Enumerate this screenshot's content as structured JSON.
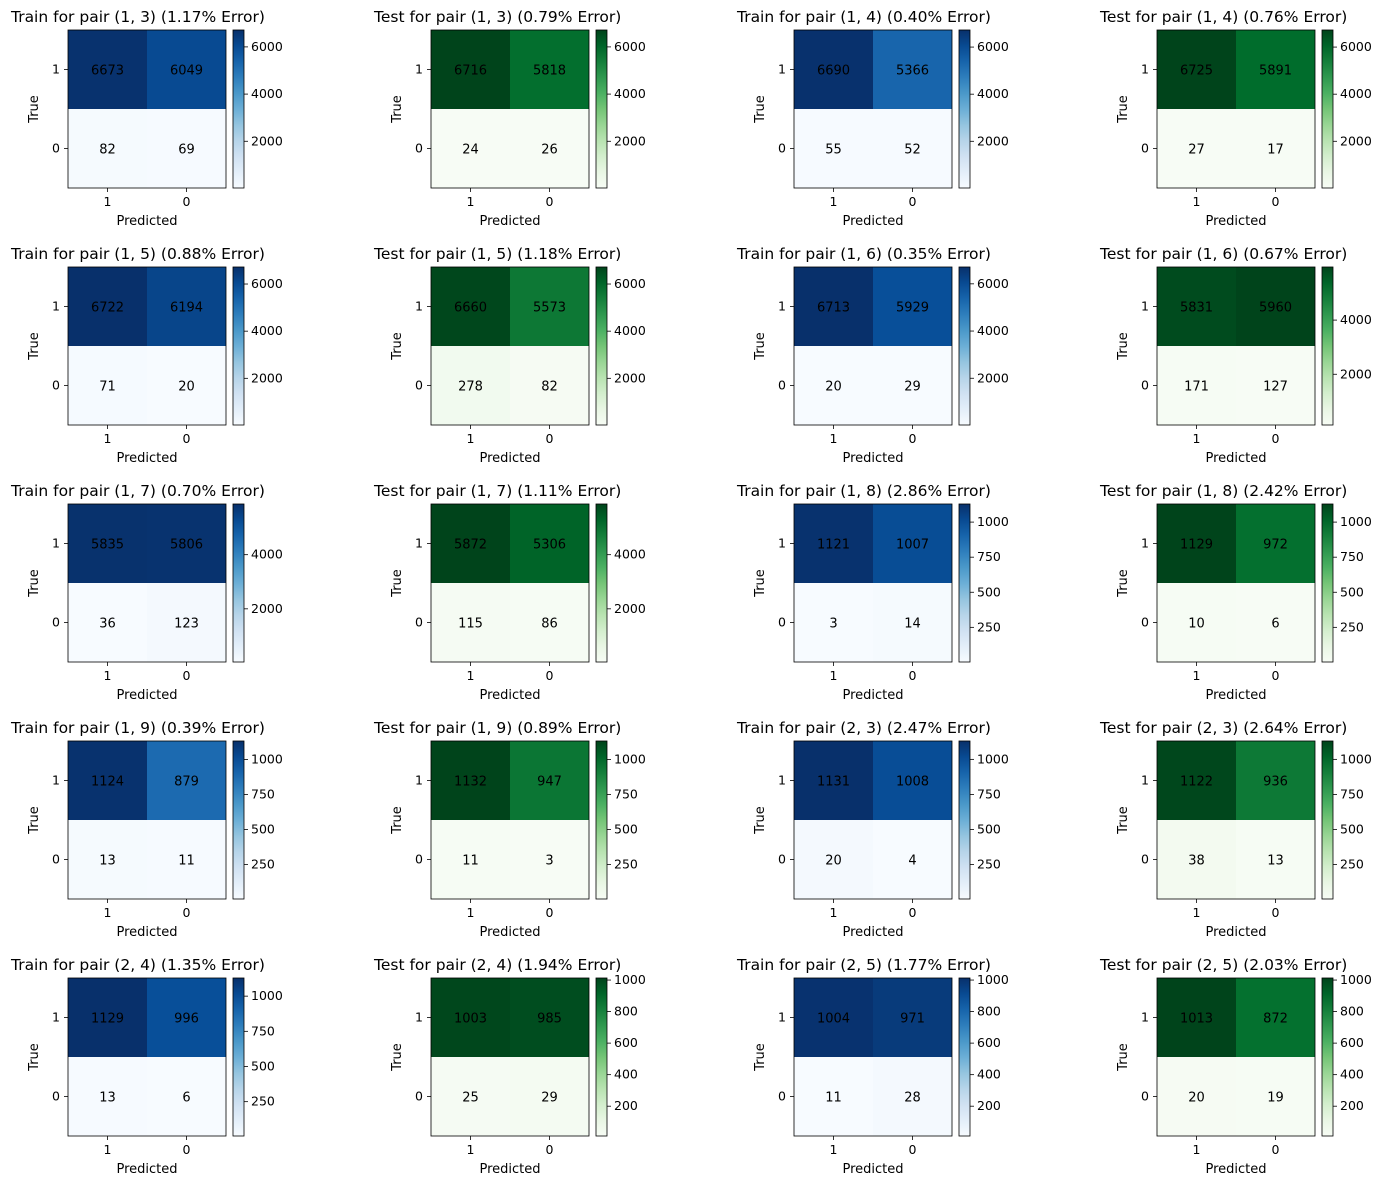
{
  "chart_data": [
    {
      "type": "heatmap",
      "title": "Train for pair (1, 3) (1.17% Error)",
      "xlabel": "Predicted",
      "ylabel": "True",
      "x_categories": [
        "1",
        "0"
      ],
      "y_categories": [
        "1",
        "0"
      ],
      "values": [
        [
          6673,
          6049
        ],
        [
          82,
          69
        ]
      ],
      "colormap": "Blues",
      "colorbar_ticks": [
        2000,
        4000,
        6000
      ],
      "colorbar_range": [
        20,
        6716
      ]
    },
    {
      "type": "heatmap",
      "title": "Test for pair (1, 3) (0.79% Error)",
      "xlabel": "Predicted",
      "ylabel": "True",
      "x_categories": [
        "1",
        "0"
      ],
      "y_categories": [
        "1",
        "0"
      ],
      "values": [
        [
          6716,
          5818
        ],
        [
          24,
          26
        ]
      ],
      "colormap": "Greens",
      "colorbar_ticks": [
        2000,
        4000,
        6000
      ],
      "colorbar_range": [
        20,
        6716
      ]
    },
    {
      "type": "heatmap",
      "title": "Train for pair (1, 4) (0.40% Error)",
      "xlabel": "Predicted",
      "ylabel": "True",
      "x_categories": [
        "1",
        "0"
      ],
      "y_categories": [
        "1",
        "0"
      ],
      "values": [
        [
          6690,
          5366
        ],
        [
          55,
          52
        ]
      ],
      "colormap": "Blues",
      "colorbar_ticks": [
        2000,
        4000,
        6000
      ],
      "colorbar_range": [
        17,
        6725
      ]
    },
    {
      "type": "heatmap",
      "title": "Test for pair (1, 4) (0.76% Error)",
      "xlabel": "Predicted",
      "ylabel": "True",
      "x_categories": [
        "1",
        "0"
      ],
      "y_categories": [
        "1",
        "0"
      ],
      "values": [
        [
          6725,
          5891
        ],
        [
          27,
          17
        ]
      ],
      "colormap": "Greens",
      "colorbar_ticks": [
        2000,
        4000,
        6000
      ],
      "colorbar_range": [
        17,
        6725
      ]
    },
    {
      "type": "heatmap",
      "title": "Train for pair (1, 5) (0.88% Error)",
      "xlabel": "Predicted",
      "ylabel": "True",
      "x_categories": [
        "1",
        "0"
      ],
      "y_categories": [
        "1",
        "0"
      ],
      "values": [
        [
          6722,
          6194
        ],
        [
          71,
          20
        ]
      ],
      "colormap": "Blues",
      "colorbar_ticks": [
        2000,
        4000,
        6000
      ],
      "colorbar_range": [
        20,
        6722
      ]
    },
    {
      "type": "heatmap",
      "title": "Test for pair (1, 5) (1.18% Error)",
      "xlabel": "Predicted",
      "ylabel": "True",
      "x_categories": [
        "1",
        "0"
      ],
      "y_categories": [
        "1",
        "0"
      ],
      "values": [
        [
          6660,
          5573
        ],
        [
          278,
          82
        ]
      ],
      "colormap": "Greens",
      "colorbar_ticks": [
        2000,
        4000,
        6000
      ],
      "colorbar_range": [
        20,
        6722
      ]
    },
    {
      "type": "heatmap",
      "title": "Train for pair (1, 6) (0.35% Error)",
      "xlabel": "Predicted",
      "ylabel": "True",
      "x_categories": [
        "1",
        "0"
      ],
      "y_categories": [
        "1",
        "0"
      ],
      "values": [
        [
          6713,
          5929
        ],
        [
          20,
          29
        ]
      ],
      "colormap": "Blues",
      "colorbar_ticks": [
        2000,
        4000,
        6000
      ],
      "colorbar_range": [
        20,
        6713
      ]
    },
    {
      "type": "heatmap",
      "title": "Test for pair (1, 6) (0.67% Error)",
      "xlabel": "Predicted",
      "ylabel": "True",
      "x_categories": [
        "1",
        "0"
      ],
      "y_categories": [
        "1",
        "0"
      ],
      "values": [
        [
          5831,
          5960
        ],
        [
          171,
          127
        ]
      ],
      "colormap": "Greens",
      "colorbar_ticks": [
        2000,
        4000
      ],
      "colorbar_range": [
        127,
        5960
      ]
    },
    {
      "type": "heatmap",
      "title": "Train for pair (1, 7) (0.70% Error)",
      "xlabel": "Predicted",
      "ylabel": "True",
      "x_categories": [
        "1",
        "0"
      ],
      "y_categories": [
        "1",
        "0"
      ],
      "values": [
        [
          5835,
          5806
        ],
        [
          36,
          123
        ]
      ],
      "colormap": "Blues",
      "colorbar_ticks": [
        2000,
        4000
      ],
      "colorbar_range": [
        36,
        5872
      ]
    },
    {
      "type": "heatmap",
      "title": "Test for pair (1, 7) (1.11% Error)",
      "xlabel": "Predicted",
      "ylabel": "True",
      "x_categories": [
        "1",
        "0"
      ],
      "y_categories": [
        "1",
        "0"
      ],
      "values": [
        [
          5872,
          5306
        ],
        [
          115,
          86
        ]
      ],
      "colormap": "Greens",
      "colorbar_ticks": [
        2000,
        4000
      ],
      "colorbar_range": [
        36,
        5872
      ]
    },
    {
      "type": "heatmap",
      "title": "Train for pair (1, 8) (2.86% Error)",
      "xlabel": "Predicted",
      "ylabel": "True",
      "x_categories": [
        "1",
        "0"
      ],
      "y_categories": [
        "1",
        "0"
      ],
      "values": [
        [
          1121,
          1007
        ],
        [
          3,
          14
        ]
      ],
      "colormap": "Blues",
      "colorbar_ticks": [
        250,
        500,
        750,
        1000
      ],
      "colorbar_range": [
        3,
        1129
      ]
    },
    {
      "type": "heatmap",
      "title": "Test for pair (1, 8) (2.42% Error)",
      "xlabel": "Predicted",
      "ylabel": "True",
      "x_categories": [
        "1",
        "0"
      ],
      "y_categories": [
        "1",
        "0"
      ],
      "values": [
        [
          1129,
          972
        ],
        [
          10,
          6
        ]
      ],
      "colormap": "Greens",
      "colorbar_ticks": [
        250,
        500,
        750,
        1000
      ],
      "colorbar_range": [
        3,
        1129
      ]
    },
    {
      "type": "heatmap",
      "title": "Train for pair (1, 9) (0.39% Error)",
      "xlabel": "Predicted",
      "ylabel": "True",
      "x_categories": [
        "1",
        "0"
      ],
      "y_categories": [
        "1",
        "0"
      ],
      "values": [
        [
          1124,
          879
        ],
        [
          13,
          11
        ]
      ],
      "colormap": "Blues",
      "colorbar_ticks": [
        250,
        500,
        750,
        1000
      ],
      "colorbar_range": [
        3,
        1132
      ]
    },
    {
      "type": "heatmap",
      "title": "Test for pair (1, 9) (0.89% Error)",
      "xlabel": "Predicted",
      "ylabel": "True",
      "x_categories": [
        "1",
        "0"
      ],
      "y_categories": [
        "1",
        "0"
      ],
      "values": [
        [
          1132,
          947
        ],
        [
          11,
          3
        ]
      ],
      "colormap": "Greens",
      "colorbar_ticks": [
        250,
        500,
        750,
        1000
      ],
      "colorbar_range": [
        3,
        1132
      ]
    },
    {
      "type": "heatmap",
      "title": "Train for pair (2, 3) (2.47% Error)",
      "xlabel": "Predicted",
      "ylabel": "True",
      "x_categories": [
        "1",
        "0"
      ],
      "y_categories": [
        "1",
        "0"
      ],
      "values": [
        [
          1131,
          1008
        ],
        [
          20,
          4
        ]
      ],
      "colormap": "Blues",
      "colorbar_ticks": [
        250,
        500,
        750,
        1000
      ],
      "colorbar_range": [
        4,
        1131
      ]
    },
    {
      "type": "heatmap",
      "title": "Test for pair (2, 3) (2.64% Error)",
      "xlabel": "Predicted",
      "ylabel": "True",
      "x_categories": [
        "1",
        "0"
      ],
      "y_categories": [
        "1",
        "0"
      ],
      "values": [
        [
          1122,
          936
        ],
        [
          38,
          13
        ]
      ],
      "colormap": "Greens",
      "colorbar_ticks": [
        250,
        500,
        750,
        1000
      ],
      "colorbar_range": [
        4,
        1131
      ]
    },
    {
      "type": "heatmap",
      "title": "Train for pair (2, 4) (1.35% Error)",
      "xlabel": "Predicted",
      "ylabel": "True",
      "x_categories": [
        "1",
        "0"
      ],
      "y_categories": [
        "1",
        "0"
      ],
      "values": [
        [
          1129,
          996
        ],
        [
          13,
          6
        ]
      ],
      "colormap": "Blues",
      "colorbar_ticks": [
        250,
        500,
        750,
        1000
      ],
      "colorbar_range": [
        6,
        1129
      ]
    },
    {
      "type": "heatmap",
      "title": "Test for pair (2, 4) (1.94% Error)",
      "xlabel": "Predicted",
      "ylabel": "True",
      "x_categories": [
        "1",
        "0"
      ],
      "y_categories": [
        "1",
        "0"
      ],
      "values": [
        [
          1003,
          985
        ],
        [
          25,
          29
        ]
      ],
      "colormap": "Greens",
      "colorbar_ticks": [
        200,
        400,
        600,
        800,
        1000
      ],
      "colorbar_range": [
        11,
        1013
      ]
    },
    {
      "type": "heatmap",
      "title": "Train for pair (2, 5) (1.77% Error)",
      "xlabel": "Predicted",
      "ylabel": "True",
      "x_categories": [
        "1",
        "0"
      ],
      "y_categories": [
        "1",
        "0"
      ],
      "values": [
        [
          1004,
          971
        ],
        [
          11,
          28
        ]
      ],
      "colormap": "Blues",
      "colorbar_ticks": [
        200,
        400,
        600,
        800,
        1000
      ],
      "colorbar_range": [
        11,
        1013
      ]
    },
    {
      "type": "heatmap",
      "title": "Test for pair (2, 5) (2.03% Error)",
      "xlabel": "Predicted",
      "ylabel": "True",
      "x_categories": [
        "1",
        "0"
      ],
      "y_categories": [
        "1",
        "0"
      ],
      "values": [
        [
          1013,
          872
        ],
        [
          20,
          19
        ]
      ],
      "colormap": "Greens",
      "colorbar_ticks": [
        200,
        400,
        600,
        800,
        1000
      ],
      "colorbar_range": [
        11,
        1013
      ]
    }
  ]
}
